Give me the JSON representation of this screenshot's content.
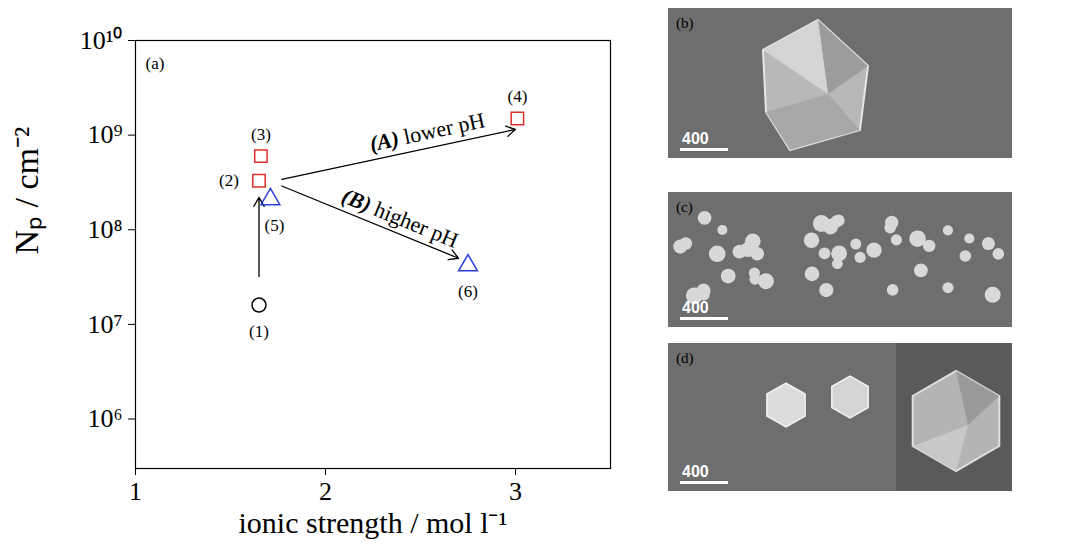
{
  "chart_data": {
    "type": "scatter",
    "panel_label": "(a)",
    "x_label": "ionic strength / mol l⁻¹",
    "y_label": "Nₚ / cm⁻²",
    "log": "y",
    "grid": false,
    "xlim": [
      1,
      3.5
    ],
    "xticks": [
      1,
      2,
      3
    ],
    "ylim": [
      300000,
      10000000000
    ],
    "yticks": [
      {
        "value": 1000000,
        "label": "10⁶"
      },
      {
        "value": 10000000,
        "label": "10⁷"
      },
      {
        "value": 100000000,
        "label": "10⁸"
      },
      {
        "value": 1000000000,
        "label": "10⁹"
      },
      {
        "value": 10000000000,
        "label": "10¹⁰"
      }
    ],
    "series": [
      {
        "color": "#000000",
        "marker": "circle",
        "x": [
          1.65
        ],
        "values": [
          16000000
        ],
        "point_labels": [
          "(1)"
        ]
      },
      {
        "color": "#e0302a",
        "marker": "square",
        "x": [
          1.65,
          1.66,
          3.01
        ],
        "values": [
          330000000,
          600000000,
          1500000000
        ],
        "point_labels": [
          "(2)",
          "(3)",
          "(4)"
        ]
      },
      {
        "color": "#2a3fd6",
        "marker": "triangle",
        "x": [
          1.71,
          2.75
        ],
        "values": [
          210000000,
          42000000
        ],
        "point_labels": [
          "(5)",
          "(6)"
        ]
      }
    ],
    "arrows": [
      {
        "x1": 1.65,
        "y1": 32000000,
        "x2": 1.65,
        "y2": 220000000
      },
      {
        "x1": 1.77,
        "y1": 340000000,
        "x2": 3.0,
        "y2": 1150000000,
        "text_bold": "(A)",
        "text": "lower pH"
      },
      {
        "x1": 1.77,
        "y1": 290000000,
        "x2": 2.7,
        "y2": 50000000,
        "text_bold": "(B)",
        "text": "higher pH"
      }
    ]
  },
  "images": [
    {
      "label": "(b)",
      "scale_bar": "400"
    },
    {
      "label": "(c)",
      "scale_bar": "400"
    },
    {
      "label": "(d)",
      "scale_bar": "400"
    }
  ]
}
